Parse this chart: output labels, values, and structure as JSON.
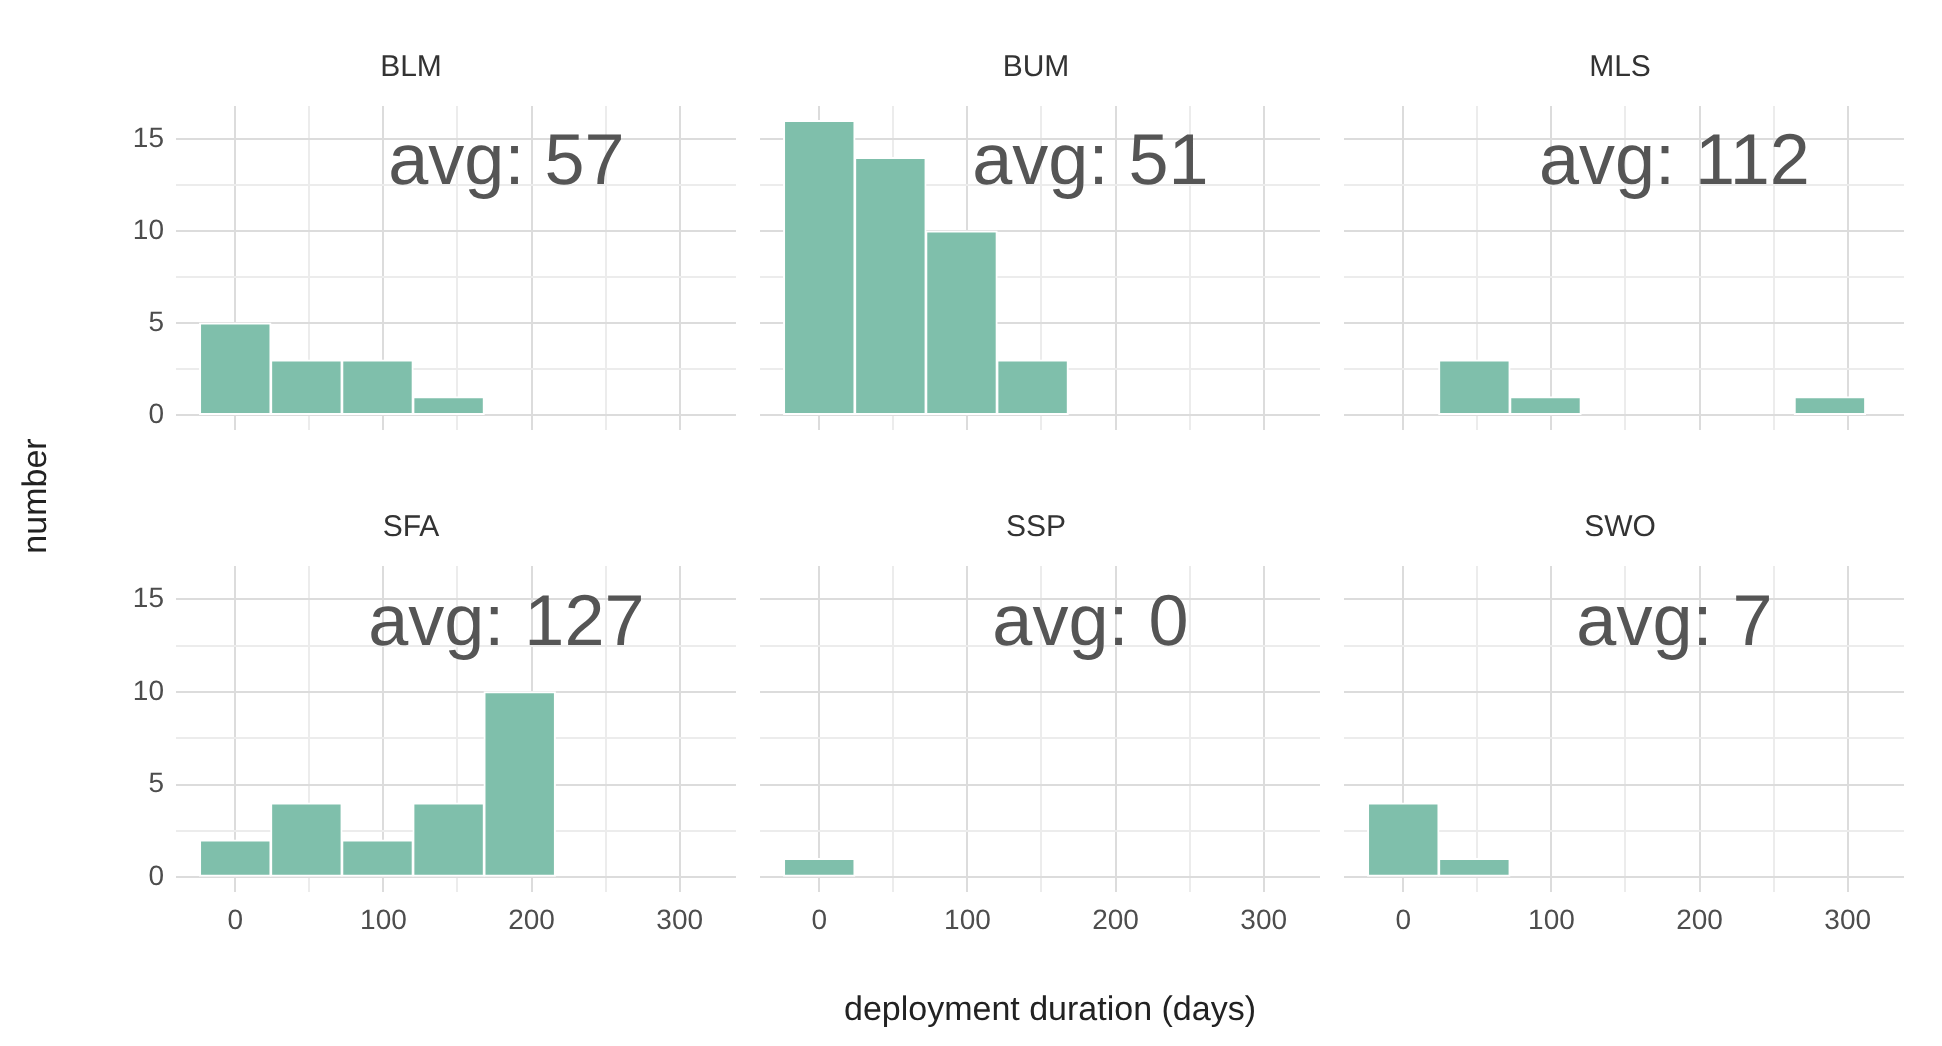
{
  "chart_data": [
    {
      "type": "histogram",
      "title": "BLM",
      "ylabel": "number",
      "bins": [
        -24,
        24,
        72,
        120,
        168,
        216,
        264,
        312
      ],
      "values": [
        5,
        3,
        3,
        1,
        0,
        0,
        0
      ],
      "color": "#7fbfab",
      "xlim": [
        -40,
        338
      ],
      "ylim": [
        -0.8,
        16.8
      ],
      "xticks": [
        0,
        {
          "value": 50,
          "label": null
        },
        100,
        {
          "value": 150,
          "label": null
        },
        200,
        {
          "value": 250,
          "label": null
        },
        300
      ],
      "yticks": [
        0,
        {
          "value": 2.5,
          "label": null
        },
        5,
        {
          "value": 7.5,
          "label": null
        },
        10,
        {
          "value": 12.5,
          "label": null
        },
        15
      ],
      "grid": true,
      "annotations": [
        "avg: 57"
      ],
      "tick_labels": "y"
    },
    {
      "type": "histogram",
      "title": "BUM",
      "bins": [
        -24,
        24,
        72,
        120,
        168,
        216,
        264,
        312
      ],
      "values": [
        16,
        14,
        10,
        3,
        0,
        0,
        0
      ],
      "color": "#7fbfab",
      "xlim": [
        -40,
        338
      ],
      "ylim": [
        -0.8,
        16.8
      ],
      "xticks": [
        0,
        {
          "value": 50,
          "label": null
        },
        100,
        {
          "value": 150,
          "label": null
        },
        200,
        {
          "value": 250,
          "label": null
        },
        300
      ],
      "yticks": [
        0,
        {
          "value": 2.5,
          "label": null
        },
        5,
        {
          "value": 7.5,
          "label": null
        },
        10,
        {
          "value": 12.5,
          "label": null
        },
        15
      ],
      "grid": true,
      "annotations": [
        "avg: 51"
      ],
      "tick_labels": false
    },
    {
      "type": "histogram",
      "title": "MLS",
      "bins": [
        -24,
        24,
        72,
        120,
        168,
        216,
        264,
        312
      ],
      "values": [
        0,
        3,
        1,
        0,
        0,
        0,
        1
      ],
      "color": "#7fbfab",
      "xlim": [
        -40,
        338
      ],
      "ylim": [
        -0.8,
        16.8
      ],
      "xticks": [
        0,
        {
          "value": 50,
          "label": null
        },
        100,
        {
          "value": 150,
          "label": null
        },
        200,
        {
          "value": 250,
          "label": null
        },
        300
      ],
      "yticks": [
        0,
        {
          "value": 2.5,
          "label": null
        },
        5,
        {
          "value": 7.5,
          "label": null
        },
        10,
        {
          "value": 12.5,
          "label": null
        },
        15
      ],
      "grid": true,
      "annotations": [
        "avg: 112"
      ],
      "tick_labels": false
    },
    {
      "type": "histogram",
      "title": "SFA",
      "bins": [
        -24,
        24,
        72,
        120,
        168,
        216,
        264,
        312
      ],
      "values": [
        2,
        4,
        2,
        4,
        10,
        0,
        0
      ],
      "color": "#7fbfab",
      "xlim": [
        -40,
        338
      ],
      "ylim": [
        -0.8,
        16.8
      ],
      "xticks": [
        0,
        {
          "value": 50,
          "label": null
        },
        100,
        {
          "value": 150,
          "label": null
        },
        200,
        {
          "value": 250,
          "label": null
        },
        300
      ],
      "yticks": [
        0,
        {
          "value": 2.5,
          "label": null
        },
        5,
        {
          "value": 7.5,
          "label": null
        },
        10,
        {
          "value": 12.5,
          "label": null
        },
        15
      ],
      "grid": true,
      "annotations": [
        "avg: 127"
      ]
    },
    {
      "type": "histogram",
      "title": "SSP",
      "xlabel": "deployment duration (days)",
      "bins": [
        -24,
        24,
        72,
        120,
        168,
        216,
        264,
        312
      ],
      "values": [
        1,
        0,
        0,
        0,
        0,
        0,
        0
      ],
      "color": "#7fbfab",
      "xlim": [
        -40,
        338
      ],
      "ylim": [
        -0.8,
        16.8
      ],
      "xticks": [
        0,
        {
          "value": 50,
          "label": null
        },
        100,
        {
          "value": 150,
          "label": null
        },
        200,
        {
          "value": 250,
          "label": null
        },
        300
      ],
      "yticks": [
        0,
        {
          "value": 2.5,
          "label": null
        },
        5,
        {
          "value": 7.5,
          "label": null
        },
        10,
        {
          "value": 12.5,
          "label": null
        },
        15
      ],
      "grid": true,
      "annotations": [
        "avg: 0"
      ],
      "tick_labels": "x"
    },
    {
      "type": "histogram",
      "title": "SWO",
      "bins": [
        -24,
        24,
        72,
        120,
        168,
        216,
        264,
        312
      ],
      "values": [
        4,
        1,
        0,
        0,
        0,
        0,
        0
      ],
      "color": "#7fbfab",
      "xlim": [
        -40,
        338
      ],
      "ylim": [
        -0.8,
        16.8
      ],
      "xticks": [
        0,
        {
          "value": 50,
          "label": null
        },
        100,
        {
          "value": 150,
          "label": null
        },
        200,
        {
          "value": 250,
          "label": null
        },
        300
      ],
      "yticks": [
        0,
        {
          "value": 2.5,
          "label": null
        },
        5,
        {
          "value": 7.5,
          "label": null
        },
        10,
        {
          "value": 12.5,
          "label": null
        },
        15
      ],
      "grid": true,
      "annotations": [
        "avg: 7"
      ],
      "tick_labels": "x"
    }
  ]
}
